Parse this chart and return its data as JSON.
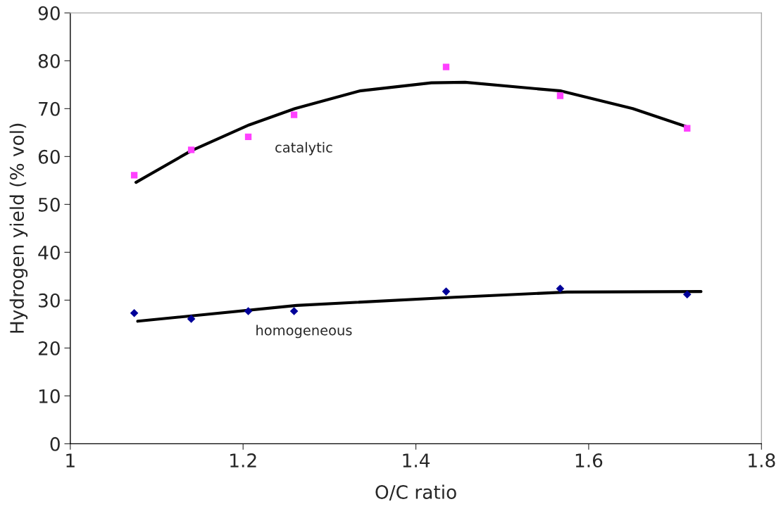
{
  "chart_data": {
    "type": "scatter",
    "xlabel": "O/C ratio",
    "ylabel": "Hydrogen yield (% vol)",
    "xlim": [
      1,
      1.8
    ],
    "xticks": [
      1,
      1.2,
      1.4,
      1.6,
      1.8
    ],
    "ylim": [
      0,
      90
    ],
    "yticks": [
      0,
      10,
      20,
      30,
      40,
      50,
      60,
      70,
      80,
      90
    ],
    "grid": false,
    "legend": false,
    "series": [
      {
        "name": "catalytic",
        "marker": "square",
        "color": "#ff40ff",
        "x": [
          1.074,
          1.14,
          1.206,
          1.259,
          1.435,
          1.567,
          1.714
        ],
        "values": [
          56.1,
          61.4,
          64.1,
          68.7,
          78.7,
          72.7,
          65.9
        ]
      },
      {
        "name": "homogeneous",
        "marker": "diamond",
        "color": "#000099",
        "x": [
          1.074,
          1.14,
          1.206,
          1.259,
          1.435,
          1.567,
          1.714
        ],
        "values": [
          27.3,
          26.1,
          27.7,
          27.7,
          31.8,
          32.4,
          31.2
        ]
      },
      {
        "type": "line",
        "marker": "none",
        "line_style": "solid",
        "color": "#000000",
        "x": [
          1.076,
          1.14,
          1.207,
          1.26,
          1.335,
          1.418,
          1.457,
          1.568,
          1.651,
          1.714
        ],
        "values": [
          54.6,
          61.2,
          66.6,
          70.0,
          73.7,
          75.4,
          75.5,
          73.7,
          70.0,
          66.2
        ]
      },
      {
        "type": "line",
        "marker": "none",
        "line_style": "solid",
        "color": "#000000",
        "x": [
          1.078,
          1.262,
          1.445,
          1.575,
          1.73
        ],
        "values": [
          25.6,
          28.9,
          30.6,
          31.7,
          31.8
        ]
      }
    ]
  }
}
